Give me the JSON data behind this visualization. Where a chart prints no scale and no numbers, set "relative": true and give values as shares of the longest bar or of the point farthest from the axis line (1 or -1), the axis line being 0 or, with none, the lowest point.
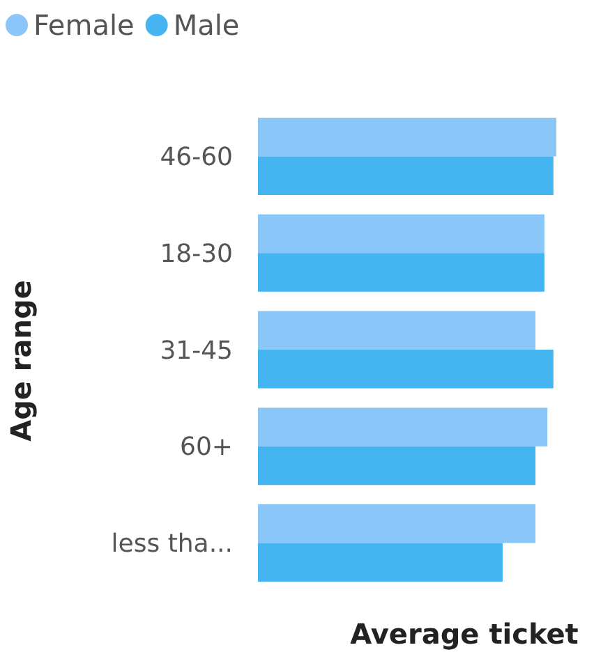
{
  "chart_data": {
    "type": "bar",
    "orientation": "horizontal",
    "relative": true,
    "xlabel": "Average ticket",
    "ylabel": "Age range",
    "legend": "top left",
    "categories": [
      "46-60",
      "18-30",
      "31-45",
      "60+",
      "less tha..."
    ],
    "series": [
      {
        "name": "Female",
        "color": "#8ac6f7",
        "values": [
          1.0,
          0.96,
          0.93,
          0.97,
          0.93
        ]
      },
      {
        "name": "Male",
        "color": "#45b5f2",
        "values": [
          0.99,
          0.96,
          0.99,
          0.93,
          0.82
        ]
      }
    ]
  }
}
